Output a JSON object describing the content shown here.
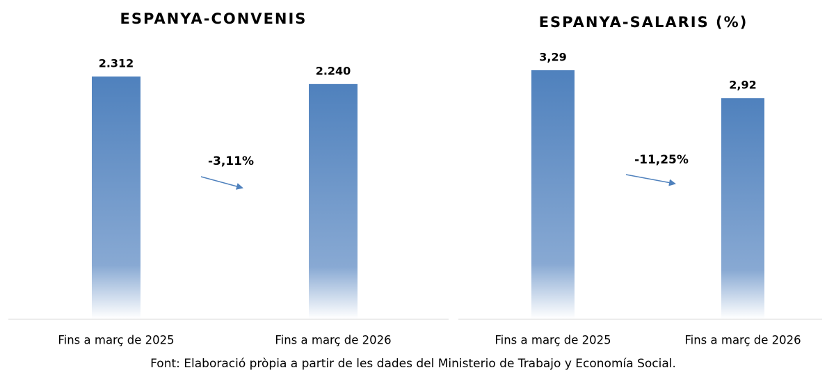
{
  "chart_data": [
    {
      "type": "bar",
      "title": "ESPANYA-CONVENIS",
      "categories": [
        "Fins a març de 2025",
        "Fins a març de 2026"
      ],
      "values": [
        2312,
        2240
      ],
      "value_labels": [
        "2.312",
        "2.240"
      ],
      "annotation": "-3,11%",
      "color": "#4f81bd"
    },
    {
      "type": "bar",
      "title": "ESPANYA-SALARIS (%)",
      "categories": [
        "Fins a març de 2025",
        "Fins a març de 2026"
      ],
      "values": [
        3.29,
        2.92
      ],
      "value_labels": [
        "3,29",
        "2,92"
      ],
      "annotation": "-11,25%",
      "color": "#4f81bd"
    }
  ],
  "source": "Font: Elaboració pròpia a partir de les dades del Ministerio de Trabajo y Economía Social."
}
